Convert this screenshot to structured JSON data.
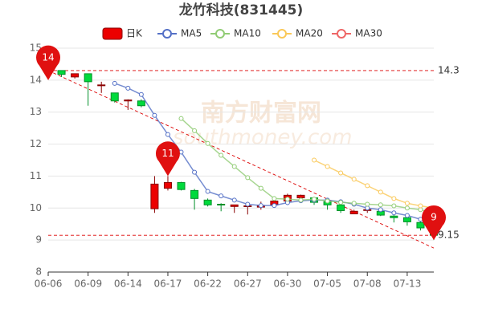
{
  "chart_data": {
    "type": "candlestick",
    "title": "龙竹科技(831445)",
    "watermark": [
      "南方财富网",
      "southmoney.com"
    ],
    "categories": [
      "06-06",
      null,
      null,
      "06-09",
      null,
      null,
      "06-14",
      null,
      null,
      "06-17",
      null,
      null,
      "06-22",
      null,
      null,
      "06-27",
      null,
      null,
      "06-30",
      null,
      null,
      "07-05",
      null,
      null,
      "07-08",
      null,
      null,
      "07-13",
      null,
      null
    ],
    "ylim": [
      8,
      15
    ],
    "yticks": [
      8,
      9,
      10,
      11,
      12,
      13,
      14,
      15
    ],
    "grid": true,
    "up_color": "#ec0000",
    "up_border": "#8a0000",
    "down_color": "#00da3c",
    "down_border": "#008f28",
    "candles": {
      "name": "日K",
      "open": [
        14.28,
        14.3,
        14.1,
        14.2,
        13.85,
        13.6,
        13.35,
        13.35,
        9.98,
        10.62,
        10.8,
        10.55,
        10.25,
        10.12,
        10.05,
        10.05,
        10.03,
        10.1,
        10.22,
        10.32,
        10.32,
        10.2,
        10.1,
        9.82,
        9.93,
        9.9,
        9.75,
        9.7,
        9.55,
        9.35
      ],
      "close": [
        14.3,
        14.18,
        14.2,
        13.95,
        13.85,
        13.35,
        13.38,
        13.2,
        10.75,
        10.8,
        10.58,
        10.3,
        10.1,
        10.1,
        10.1,
        10.07,
        10.08,
        10.22,
        10.4,
        10.4,
        10.18,
        10.1,
        9.92,
        9.9,
        9.95,
        9.78,
        9.7,
        9.57,
        9.38,
        9.15
      ],
      "high": [
        14.3,
        14.3,
        14.2,
        14.2,
        13.95,
        13.6,
        13.4,
        13.4,
        11.0,
        11.0,
        10.82,
        10.6,
        10.3,
        10.15,
        10.1,
        10.1,
        10.2,
        10.25,
        10.45,
        10.42,
        10.35,
        10.3,
        10.15,
        9.95,
        10.05,
        9.95,
        9.8,
        9.75,
        9.6,
        9.4
      ],
      "low": [
        14.05,
        14.1,
        14.05,
        13.2,
        13.6,
        13.3,
        13.07,
        13.15,
        9.85,
        10.55,
        10.55,
        9.95,
        10.05,
        9.9,
        9.85,
        9.8,
        9.95,
        10.05,
        10.1,
        10.2,
        10.1,
        9.95,
        9.85,
        9.82,
        9.85,
        9.75,
        9.55,
        9.45,
        9.3,
        9.0
      ]
    },
    "series": [
      {
        "name": "MA5",
        "color": "#5470c6",
        "values": [
          null,
          null,
          null,
          null,
          null,
          13.9,
          13.75,
          13.55,
          12.9,
          12.3,
          11.75,
          11.12,
          10.52,
          10.38,
          10.25,
          10.12,
          10.08,
          10.08,
          10.17,
          10.23,
          10.25,
          10.25,
          10.2,
          10.12,
          10.0,
          9.95,
          9.85,
          9.77,
          9.65,
          9.5
        ]
      },
      {
        "name": "MA10",
        "color": "#91cc75",
        "values": [
          null,
          null,
          null,
          null,
          null,
          null,
          null,
          null,
          null,
          null,
          12.8,
          12.42,
          12.02,
          11.65,
          11.3,
          10.95,
          10.62,
          10.3,
          10.28,
          10.25,
          10.28,
          10.22,
          10.18,
          10.15,
          10.12,
          10.1,
          10.07,
          10.0,
          9.95,
          9.85
        ]
      },
      {
        "name": "MA20",
        "color": "#fac858",
        "values": [
          null,
          null,
          null,
          null,
          null,
          null,
          null,
          null,
          null,
          null,
          null,
          null,
          null,
          null,
          null,
          null,
          null,
          null,
          null,
          null,
          11.5,
          11.3,
          11.1,
          10.9,
          10.7,
          10.5,
          10.3,
          10.15,
          10.07,
          10.0
        ]
      },
      {
        "name": "MA30",
        "color": "#ee6666",
        "values": [
          null,
          null,
          null,
          null,
          null,
          null,
          null,
          null,
          null,
          null,
          null,
          null,
          null,
          null,
          null,
          null,
          null,
          null,
          null,
          null,
          null,
          null,
          null,
          null,
          null,
          null,
          null,
          null,
          null,
          null
        ]
      }
    ],
    "markers": [
      {
        "index": 0,
        "value": 14
      },
      {
        "index": 9,
        "value": 11
      },
      {
        "index": 29,
        "value": 9
      }
    ],
    "marker_color": "#e01010",
    "mark_lines": [
      14.3,
      9.15
    ],
    "trend_line": {
      "from": [
        0,
        14.3
      ],
      "to": [
        29,
        8.75
      ]
    }
  }
}
